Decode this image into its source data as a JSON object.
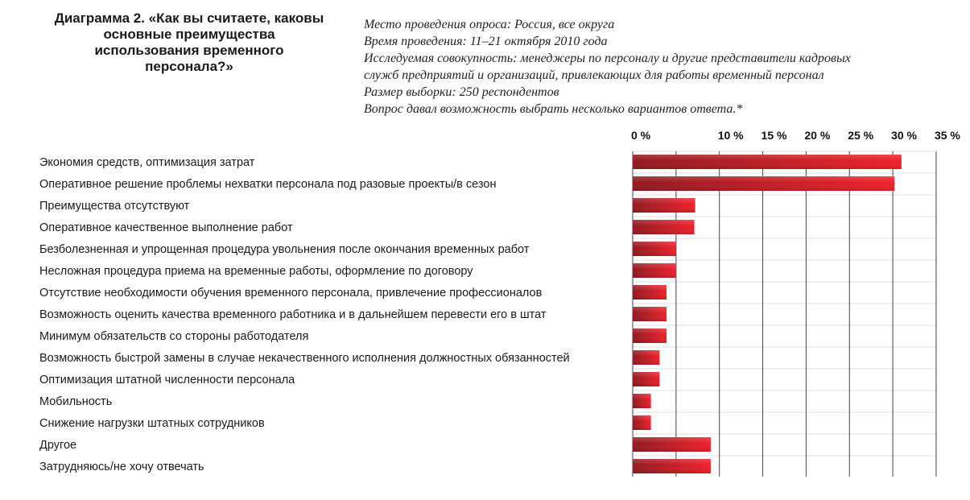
{
  "header": {
    "title_lead": "Диаграмма 2. ",
    "title_quote": "«Как вы считаете, каковы основные преимущества использования временного персонала?»"
  },
  "info": {
    "lines": [
      "Место проведения опроса: Россия, все округа",
      "Время проведения: 11–21 октября 2010 года",
      "Исследуемая совокупность: менеджеры по персоналу и другие представители кадровых",
      "служб предприятий и организаций, привлекающих для работы временный персонал",
      "Размер выборки: 250 респондентов",
      "Вопрос давал возможность выбрать несколько вариантов ответа.*"
    ]
  },
  "colors": {
    "bar_dark": "#8f1a1f",
    "bar_light": "#f0202a",
    "grid": "#444444"
  },
  "chart_data": {
    "type": "bar",
    "orientation": "horizontal",
    "xlim": [
      0,
      35
    ],
    "xticks": [
      0,
      10,
      15,
      20,
      25,
      30,
      35
    ],
    "tick_labels": [
      "0 %",
      "10 %",
      "15 %",
      "20 %",
      "25 %",
      "30 %",
      "35 %"
    ],
    "grid": true,
    "categories": [
      "Экономия средств, оптимизация затрат",
      "Оперативное решение проблемы нехватки персонала под разовые проекты/в сезон",
      "Преимущества отсутствуют",
      "Оперативное качественное выполнение работ",
      "Безболезненная и упрощенная процедура увольнения после окончания временных работ",
      "Несложная процедура приема на временные работы, оформление по договору",
      "Отсутствие необходимости обучения временного персонала, привлечение профессионалов",
      "Возможность оценить качества временного работника и в дальнейшем перевести его в штат",
      "Минимум обязательств со стороны работодателя",
      "Возможность быстрой замены в случае некачественного исполнения должностных обязанностей",
      "Оптимизация штатной численности персонала",
      "Мобильность",
      "Снижение нагрузки штатных сотрудников",
      "Другое",
      "Затрудняюсь/не хочу отвечать"
    ],
    "values": [
      31,
      30.2,
      7.2,
      7.1,
      5,
      5,
      3.9,
      3.9,
      3.9,
      3.1,
      3.1,
      2.1,
      2.1,
      9,
      9
    ]
  }
}
